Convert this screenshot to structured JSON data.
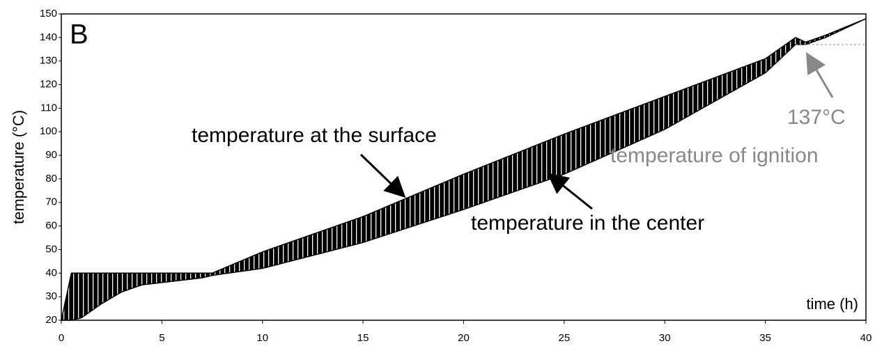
{
  "chart_data": {
    "type": "line",
    "panel_label": "B",
    "xlabel": "time (h)",
    "ylabel": "temperature (°C)",
    "x": [
      0,
      0.5,
      1,
      2,
      3,
      4,
      5,
      6,
      7,
      7.5,
      10,
      15,
      20,
      25,
      30,
      35,
      36.5,
      37,
      38,
      40
    ],
    "series": [
      {
        "name": "temperature at the surface",
        "color": "#000000",
        "values": [
          20,
          40,
          40,
          40,
          40,
          40,
          40,
          40,
          40,
          40,
          49,
          64,
          82,
          99,
          115,
          131,
          140,
          138,
          141,
          148
        ]
      },
      {
        "name": "temperature in the center",
        "color": "#000000",
        "values": [
          20,
          20,
          21,
          27,
          32,
          35,
          36,
          37,
          38,
          39,
          42,
          53,
          67,
          82,
          101,
          125,
          137,
          137,
          140,
          148
        ]
      }
    ],
    "annotations": [
      "137°C",
      "temperature of ignition"
    ],
    "ignition_temperature": 137,
    "xlim": [
      0,
      40
    ],
    "xticks": [
      0,
      5,
      10,
      15,
      20,
      25,
      30,
      35,
      40
    ],
    "ylim": [
      20,
      150
    ],
    "yticks": [
      20,
      30,
      40,
      50,
      60,
      70,
      80,
      90,
      100,
      110,
      120,
      130,
      140,
      150
    ]
  }
}
